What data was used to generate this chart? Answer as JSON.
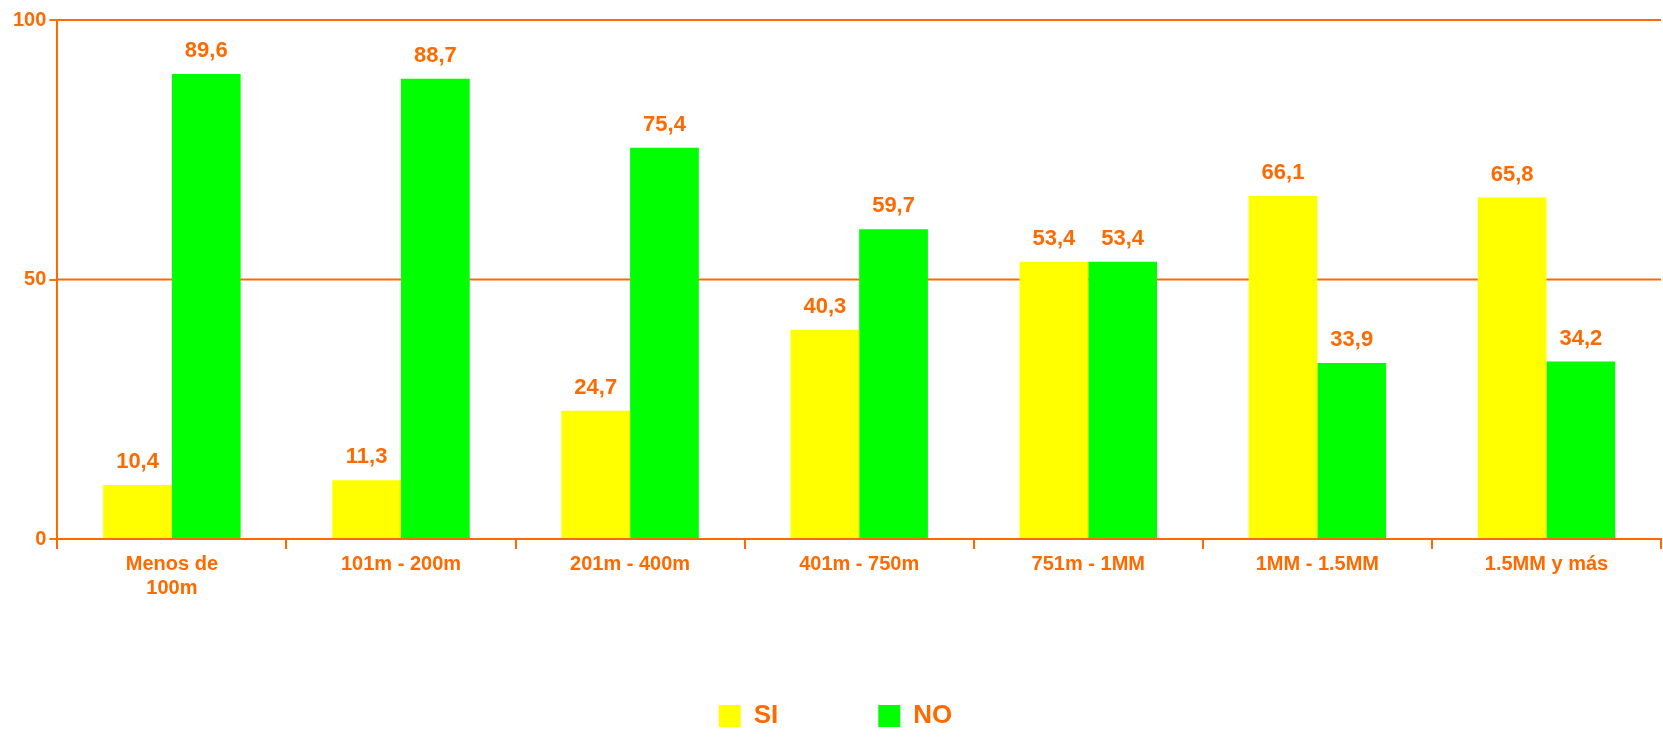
{
  "chart_data": {
    "type": "bar",
    "categories": [
      "Menos de 100m",
      "101m - 200m",
      "201m - 400m",
      "401m - 750m",
      "751m - 1MM",
      "1MM - 1.5MM",
      "1.5MM y más"
    ],
    "series": [
      {
        "name": "SI",
        "color": "#ffff00",
        "values": [
          10.4,
          11.3,
          24.7,
          40.3,
          53.4,
          66.1,
          65.8
        ],
        "value_labels": [
          "10,4",
          "11,3",
          "24,7",
          "40,3",
          "53,4",
          "66,1",
          "65,8"
        ]
      },
      {
        "name": "NO",
        "color": "#00ff00",
        "values": [
          89.6,
          88.7,
          75.4,
          59.7,
          53.4,
          33.9,
          34.2
        ],
        "value_labels": [
          "89,6",
          "88,7",
          "75,4",
          "59,7",
          "53,4",
          "33,9",
          "34,2"
        ]
      }
    ],
    "ylim": [
      0,
      100
    ],
    "yticks": [
      0,
      50,
      100
    ],
    "ref_lines": [
      {
        "axis": "y",
        "value": 50,
        "color": "#ff6a00"
      },
      {
        "axis": "y",
        "value": 100,
        "color": "#ff6a00"
      }
    ],
    "legend": "bottom"
  }
}
